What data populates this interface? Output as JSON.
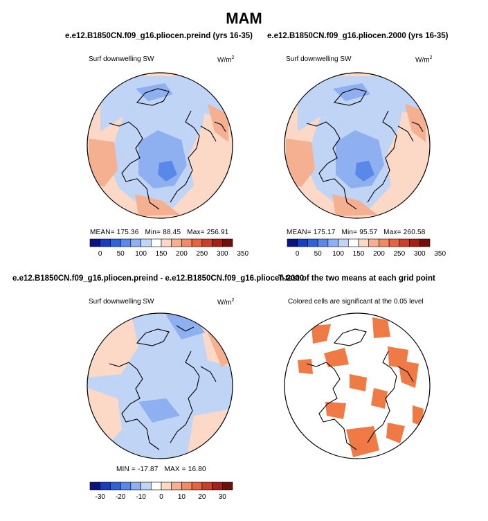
{
  "page": {
    "title": "MAM"
  },
  "colors": {
    "cb_abs": [
      "#0a1480",
      "#1a3cc0",
      "#3062d8",
      "#5a88e8",
      "#8eb0f0",
      "#c0d4f6",
      "#ffffff",
      "#fbd9c6",
      "#f5b091",
      "#ef8a64",
      "#e3643e",
      "#c9402a",
      "#a52018",
      "#70100c"
    ],
    "cb_diff": [
      "#0a1480",
      "#1a3cc0",
      "#3062d8",
      "#5a88e8",
      "#8eb0f0",
      "#c0d4f6",
      "#ffffff",
      "#fbd9c6",
      "#f5b091",
      "#ef8a64",
      "#e3643e",
      "#c9402a",
      "#a52018",
      "#70100c"
    ],
    "sig": "#f07a45"
  },
  "chart_data": [
    {
      "type": "heatmap",
      "title": "e.e12.B1850CN.f09_g16.pliocen.preind (yrs 16-35)",
      "label": "Surf downwelling SW",
      "units": "W/m",
      "units_exp": "2",
      "stats": {
        "mean_label": "MEAN=",
        "mean": "175.36",
        "min_label": "Min=",
        "min": "88.45",
        "max_label": "Max=",
        "max": "256.91"
      },
      "colorbar": {
        "ticks": [
          "0",
          "50",
          "100",
          "150",
          "200",
          "250",
          "300",
          "350"
        ]
      }
    },
    {
      "type": "heatmap",
      "title": "e.e12.B1850CN.f09_g16.pliocen.2000 (yrs 16-35)",
      "label": "Surf downwelling SW",
      "units": "W/m",
      "units_exp": "2",
      "stats": {
        "mean_label": "MEAN=",
        "mean": "175.17",
        "min_label": "Min=",
        "min": "95.57",
        "max_label": "Max=",
        "max": "260.58"
      },
      "colorbar": {
        "ticks": [
          "0",
          "50",
          "100",
          "150",
          "200",
          "250",
          "300",
          "350"
        ]
      }
    },
    {
      "type": "heatmap",
      "title": "e.e12.B1850CN.f09_g16.pliocen.preind - e.e12.B1850CN.f09_g16.pliocen.2000",
      "label": "Surf downwelling SW",
      "units": "W/m",
      "units_exp": "2",
      "stats": {
        "min_label": "MIN =",
        "min": "-17.87",
        "max_label": "MAX =",
        "max": "16.80"
      },
      "colorbar": {
        "ticks": [
          "-30",
          "-20",
          "-10",
          "0",
          "10",
          "20",
          "30"
        ]
      }
    },
    {
      "type": "heatmap",
      "title": "T-test of the two means at each grid point",
      "label": "Colored cells are significant at the 0.05 level"
    }
  ]
}
